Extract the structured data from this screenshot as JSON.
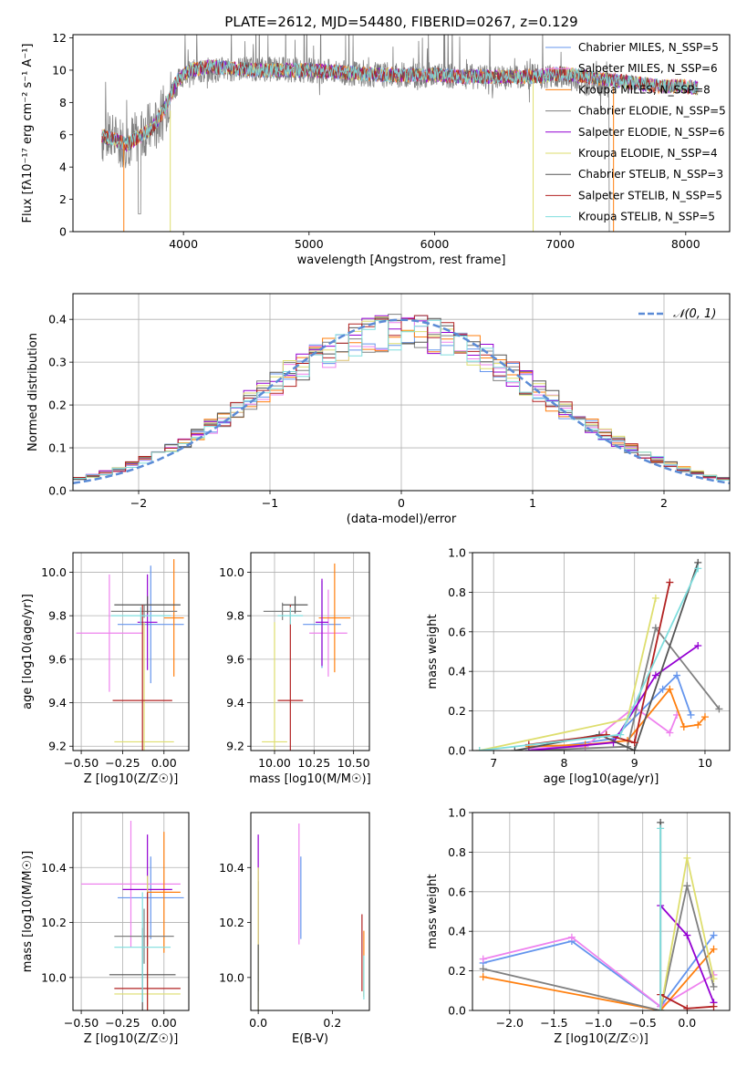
{
  "figure_title": "PLATE=2612, MJD=54480, FIBERID=0267, z=0.129",
  "series_colors": [
    "#6495ed",
    "#ee82ee",
    "#ff7f0e",
    "#808080",
    "#9400d3",
    "#dede6e",
    "#555555",
    "#b22222",
    "#7fdede"
  ],
  "chart_data": [
    {
      "id": "spectrum",
      "type": "line",
      "xlabel": "wavelength [Angstrom, rest frame]",
      "ylabel": "Flux [fλ10⁻¹⁷ erg cm⁻² s⁻¹ A⁻¹]",
      "xlim": [
        3120,
        8350
      ],
      "ylim": [
        0,
        12.2
      ],
      "xticks": [
        "4000",
        "5000",
        "6000",
        "7000",
        "8000"
      ],
      "yticks": [
        "0",
        "2",
        "4",
        "6",
        "8",
        "10",
        "12"
      ],
      "grid": false,
      "legend_position": "right",
      "legend": [
        "Chabrier MILES, N_SSP=5",
        "Salpeter MILES, N_SSP=6",
        "Kroupa MILES, N_SSP=8",
        "Chabrier ELODIE, N_SSP=5",
        "Salpeter ELODIE, N_SSP=6",
        "Kroupa ELODIE, N_SSP=4",
        "Chabrier STELIB, N_SSP=3",
        "Salpeter STELIB, N_SSP=5",
        "Kroupa STELIB, N_SSP=5"
      ],
      "data_envelope": {
        "x": [
          3350,
          3500,
          3600,
          3700,
          3800,
          3900,
          4000,
          4200,
          4500,
          5000,
          5500,
          6000,
          6500,
          7000,
          7200,
          7400
        ],
        "y": [
          5.8,
          5.6,
          5.7,
          6.3,
          6.6,
          8.6,
          9.8,
          10.0,
          10.1,
          10.0,
          9.7,
          9.7,
          9.5,
          9.7,
          9.2,
          9.0
        ]
      },
      "model_x": [
        3350,
        3450,
        3550,
        3650,
        3750,
        3850,
        3950,
        4050,
        4200,
        4400,
        4600,
        4800,
        5000,
        5200,
        5400,
        5600,
        5800,
        6000,
        6200,
        6400,
        6600,
        6800,
        7000,
        7200,
        7400,
        7600,
        7800,
        8000,
        8100
      ],
      "model_y": [
        5.9,
        5.7,
        5.4,
        5.9,
        6.4,
        7.6,
        9.4,
        10.0,
        10.2,
        10.1,
        10.0,
        10.0,
        10.0,
        9.9,
        9.8,
        9.7,
        9.7,
        9.7,
        9.6,
        9.6,
        9.6,
        9.6,
        9.8,
        9.6,
        9.4,
        9.2,
        9.0,
        9.0,
        8.9
      ]
    },
    {
      "id": "residuals",
      "type": "step",
      "xlabel": "(data-model)/error",
      "ylabel": "Normed distribution",
      "xlim": [
        -2.5,
        2.5
      ],
      "ylim": [
        0,
        0.46
      ],
      "xticks": [
        "−2",
        "−1",
        "0",
        "1",
        "2"
      ],
      "yticks": [
        "0.0",
        "0.1",
        "0.2",
        "0.3",
        "0.4"
      ],
      "grid": true,
      "legend_position": "top-right",
      "legend": [
        "𝒩(0, 1)"
      ],
      "bin_width": 0.1
    },
    {
      "id": "age-vs-metallicity",
      "type": "errorbar",
      "xlabel": "Z [log10(Z/Z☉)]",
      "ylabel": "age  [log10(age/yr)]",
      "xlim": [
        -0.55,
        0.15
      ],
      "ylim": [
        9.18,
        10.09
      ],
      "xticks": [
        "−0.50",
        "−0.25",
        "0.00"
      ],
      "yticks": [
        "9.2",
        "9.4",
        "9.6",
        "9.8",
        "10.0"
      ],
      "grid": true,
      "points": [
        {
          "x": -0.08,
          "xerr": 0.2,
          "y": 9.76,
          "yerr": 0.27
        },
        {
          "x": -0.33,
          "xerr": 0.2,
          "y": 9.72,
          "yerr": 0.27
        },
        {
          "x": 0.06,
          "xerr": 0.06,
          "y": 9.79,
          "yerr": 0.27
        },
        {
          "x": -0.12,
          "xerr": 0.2,
          "y": 9.82,
          "yerr": 0.03
        },
        {
          "x": -0.1,
          "xerr": 0.06,
          "y": 9.77,
          "yerr": 0.22
        },
        {
          "x": -0.12,
          "xerr": 0.18,
          "y": 9.22,
          "yerr": 0.55
        },
        {
          "x": -0.1,
          "xerr": 0.2,
          "y": 9.85,
          "yerr": 0.04
        },
        {
          "x": -0.13,
          "xerr": 0.18,
          "y": 9.41,
          "yerr": 0.44
        },
        {
          "x": -0.14,
          "xerr": 0.18,
          "y": 9.8,
          "yerr": 0.04
        }
      ]
    },
    {
      "id": "age-vs-mass",
      "type": "errorbar",
      "xlabel": "mass [log10(M/M☉)]",
      "ylabel": "",
      "xlim": [
        9.85,
        10.6
      ],
      "ylim": [
        9.18,
        10.09
      ],
      "xticks": [
        "10.00",
        "10.25",
        "10.50"
      ],
      "yticks": [
        "9.2",
        "9.4",
        "9.6",
        "9.8",
        "10.0"
      ],
      "grid": true,
      "points": [
        {
          "x": 10.3,
          "xerr": 0.12,
          "y": 9.76,
          "yerr": 0.2
        },
        {
          "x": 10.34,
          "xerr": 0.12,
          "y": 9.72,
          "yerr": 0.2
        },
        {
          "x": 10.38,
          "xerr": 0.1,
          "y": 9.79,
          "yerr": 0.25
        },
        {
          "x": 10.05,
          "xerr": 0.12,
          "y": 9.82,
          "yerr": 0.04
        },
        {
          "x": 10.3,
          "xerr": 0.04,
          "y": 9.77,
          "yerr": 0.2
        },
        {
          "x": 10.0,
          "xerr": 0.08,
          "y": 9.22,
          "yerr": 0.55
        },
        {
          "x": 10.13,
          "xerr": 0.08,
          "y": 9.85,
          "yerr": 0.04
        },
        {
          "x": 10.1,
          "xerr": 0.08,
          "y": 9.41,
          "yerr": 0.44
        },
        {
          "x": 10.1,
          "xerr": 0.08,
          "y": 9.8,
          "yerr": 0.04
        }
      ]
    },
    {
      "id": "mass-weight-vs-age",
      "type": "line",
      "xlabel": "age  [log10(age/yr)]",
      "ylabel": "mass weight",
      "xlim": [
        6.7,
        10.35
      ],
      "ylim": [
        0,
        1.0
      ],
      "xticks": [
        "7",
        "8",
        "9",
        "10"
      ],
      "yticks": [
        "0.0",
        "0.2",
        "0.4",
        "0.6",
        "0.8",
        "1.0"
      ],
      "grid": true,
      "series": [
        {
          "x": [
            7.5,
            8.7,
            9.4,
            9.6,
            9.8
          ],
          "y": [
            0.0,
            0.06,
            0.31,
            0.38,
            0.18
          ]
        },
        {
          "x": [
            7.5,
            8.3,
            9.0,
            9.5,
            9.6
          ],
          "y": [
            0.01,
            0.02,
            0.22,
            0.09,
            0.18
          ]
        },
        {
          "x": [
            7.5,
            8.3,
            8.9,
            9.5,
            9.7,
            9.9,
            10.0
          ],
          "y": [
            0.02,
            0.03,
            0.05,
            0.31,
            0.12,
            0.13,
            0.17
          ]
        },
        {
          "x": [
            7.5,
            8.9,
            9.3,
            10.2
          ],
          "y": [
            0.0,
            0.02,
            0.62,
            0.21
          ]
        },
        {
          "x": [
            7.5,
            8.7,
            9.3,
            9.9
          ],
          "y": [
            0.0,
            0.04,
            0.38,
            0.53
          ]
        },
        {
          "x": [
            6.8,
            8.9,
            9.3
          ],
          "y": [
            0.0,
            0.16,
            0.77
          ]
        },
        {
          "x": [
            7.3,
            8.5,
            9.0,
            9.9
          ],
          "y": [
            0.0,
            0.08,
            0.0,
            0.95
          ]
        },
        {
          "x": [
            7.5,
            8.6,
            9.0,
            9.5
          ],
          "y": [
            0.03,
            0.08,
            0.04,
            0.85
          ]
        },
        {
          "x": [
            6.8,
            8.8,
            9.9
          ],
          "y": [
            0.0,
            0.08,
            0.92
          ]
        }
      ]
    },
    {
      "id": "mass-vs-metallicity",
      "type": "errorbar",
      "xlabel": "Z [log10(Z/Z☉)]",
      "ylabel": "mass [log10(M/M☉)]",
      "xlim": [
        -0.55,
        0.15
      ],
      "ylim": [
        9.88,
        10.6
      ],
      "xticks": [
        "−0.50",
        "−0.25",
        "0.00"
      ],
      "yticks": [
        "10.0",
        "10.2",
        "10.4"
      ],
      "grid": true,
      "points": [
        {
          "x": -0.08,
          "xerr": 0.2,
          "y": 10.29,
          "yerr": 0.15
        },
        {
          "x": -0.2,
          "xerr": 0.3,
          "y": 10.34,
          "yerr": 0.23
        },
        {
          "x": 0.0,
          "xerr": 0.1,
          "y": 10.31,
          "yerr": 0.22
        },
        {
          "x": -0.12,
          "xerr": 0.18,
          "y": 10.15,
          "yerr": 0.1
        },
        {
          "x": -0.1,
          "xerr": 0.15,
          "y": 10.32,
          "yerr": 0.2
        },
        {
          "x": -0.1,
          "xerr": 0.2,
          "y": 9.94,
          "yerr": 0.43
        },
        {
          "x": -0.13,
          "xerr": 0.2,
          "y": 10.01,
          "yerr": 0.17
        },
        {
          "x": -0.1,
          "xerr": 0.2,
          "y": 9.96,
          "yerr": 0.35
        },
        {
          "x": -0.13,
          "xerr": 0.17,
          "y": 10.11,
          "yerr": 0.2
        }
      ]
    },
    {
      "id": "mass-vs-ebv",
      "type": "errorbar",
      "xlabel": "E(B-V)",
      "ylabel": "",
      "xlim": [
        -0.02,
        0.3
      ],
      "ylim": [
        9.88,
        10.6
      ],
      "xticks": [
        "0.0",
        "0.2"
      ],
      "yticks": [
        "10.0",
        "10.2",
        "10.4"
      ],
      "grid": false,
      "points": [
        {
          "x": 0.115,
          "y": 10.29,
          "yerr": 0.15
        },
        {
          "x": 0.11,
          "y": 10.34,
          "yerr": 0.22
        },
        {
          "x": 0.285,
          "y": 10.05,
          "yerr": 0.12
        },
        {
          "x": 0.0,
          "y": 10.15,
          "yerr": 0.2
        },
        {
          "x": 0.0,
          "y": 10.32,
          "yerr": 0.2
        },
        {
          "x": 0.0,
          "y": 10.1,
          "yerr": 0.3
        },
        {
          "x": 0.0,
          "y": 10.0,
          "yerr": 0.12
        },
        {
          "x": 0.28,
          "y": 10.09,
          "yerr": 0.14
        },
        {
          "x": 0.285,
          "y": 10.0,
          "yerr": 0.08
        }
      ]
    },
    {
      "id": "mass-weight-vs-metallicity",
      "type": "line",
      "xlabel": "Z [log10(Z/Z☉)]",
      "ylabel": "mass weight",
      "xlim": [
        -2.42,
        0.48
      ],
      "ylim": [
        0,
        1.0
      ],
      "xticks": [
        "−2.0",
        "−1.5",
        "−1.0",
        "−0.5",
        "0.0"
      ],
      "yticks": [
        "0.0",
        "0.2",
        "0.4",
        "0.6",
        "0.8",
        "1.0"
      ],
      "grid": true,
      "series": [
        {
          "x": [
            -2.3,
            -1.3,
            -0.3,
            0.3
          ],
          "y": [
            0.24,
            0.35,
            0.02,
            0.38
          ]
        },
        {
          "x": [
            -2.3,
            -1.3,
            -0.3,
            0.3
          ],
          "y": [
            0.26,
            0.37,
            0.02,
            0.18
          ]
        },
        {
          "x": [
            -2.3,
            -0.3,
            0.3
          ],
          "y": [
            0.17,
            0.0,
            0.31
          ]
        },
        {
          "x": [
            -2.3,
            -0.3,
            0.0,
            0.3
          ],
          "y": [
            0.21,
            0.0,
            0.63,
            0.12
          ]
        },
        {
          "x": [
            -0.3,
            0.0,
            0.3
          ],
          "y": [
            0.53,
            0.38,
            0.04
          ]
        },
        {
          "x": [
            -0.3,
            0.0,
            0.3
          ],
          "y": [
            0.0,
            0.77,
            0.16
          ]
        },
        {
          "x": [
            -0.3,
            -0.3
          ],
          "y": [
            0.0,
            0.95
          ]
        },
        {
          "x": [
            -0.3,
            0.0,
            0.3
          ],
          "y": [
            0.08,
            0.01,
            0.02
          ]
        },
        {
          "x": [
            -0.3,
            -0.3
          ],
          "y": [
            0.0,
            0.92
          ]
        }
      ]
    }
  ]
}
